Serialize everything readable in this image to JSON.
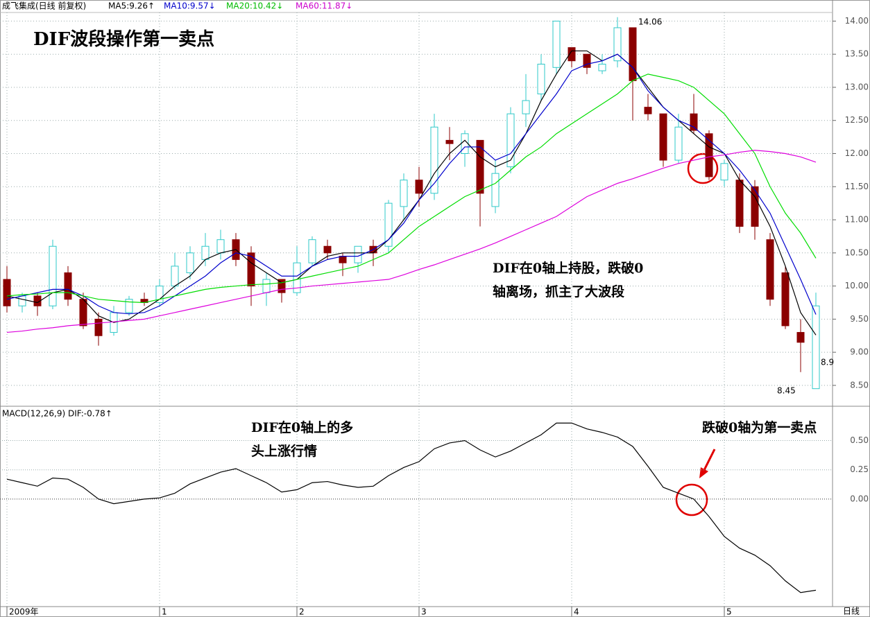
{
  "header": {
    "stock": "成飞集成(日线 前复权)",
    "ma_labels": [
      {
        "text": "MA5:9.26↑",
        "color": "#000000"
      },
      {
        "text": "MA10:9.57↓",
        "color": "#0000cc"
      },
      {
        "text": "MA20:10.42↓",
        "color": "#00bb00"
      },
      {
        "text": "MA60:11.87↓",
        "color": "#cc00cc"
      }
    ],
    "macd": "MACD(12,26,9) DIF:-0.78↑"
  },
  "chart_data": [
    {
      "type": "candlestick",
      "title": "DIF波段操作第一卖点",
      "categories": [
        "2009年",
        null,
        null,
        null,
        null,
        null,
        null,
        null,
        null,
        null,
        "1",
        null,
        null,
        null,
        null,
        null,
        null,
        null,
        null,
        "2",
        null,
        null,
        null,
        null,
        null,
        null,
        null,
        "3",
        null,
        null,
        null,
        null,
        null,
        null,
        null,
        null,
        null,
        "4",
        null,
        null,
        null,
        null,
        null,
        null,
        null,
        null,
        null,
        "5",
        null,
        null,
        null,
        null,
        null,
        null
      ],
      "open": [
        10.1,
        9.7,
        9.85,
        9.7,
        10.2,
        9.8,
        9.5,
        9.3,
        9.6,
        9.8,
        9.75,
        10.0,
        10.2,
        10.4,
        10.5,
        10.7,
        10.5,
        9.9,
        10.1,
        9.9,
        10.35,
        10.6,
        10.45,
        10.35,
        10.6,
        10.6,
        11.2,
        11.6,
        11.4,
        12.2,
        12.0,
        12.2,
        11.2,
        11.8,
        12.6,
        12.9,
        13.3,
        13.6,
        13.5,
        13.25,
        13.4,
        13.9,
        12.7,
        12.6,
        11.9,
        12.6,
        12.3,
        11.6,
        11.6,
        11.5,
        10.7,
        10.2,
        9.3,
        8.45
      ],
      "high": [
        10.3,
        9.9,
        9.9,
        10.7,
        10.3,
        9.9,
        9.6,
        9.7,
        9.85,
        9.9,
        10.1,
        10.5,
        10.6,
        10.8,
        10.85,
        10.8,
        10.6,
        10.2,
        10.1,
        10.6,
        10.75,
        10.7,
        10.5,
        10.6,
        10.7,
        11.3,
        11.7,
        11.8,
        12.6,
        12.4,
        12.35,
        12.2,
        11.9,
        12.7,
        13.2,
        13.5,
        14.0,
        13.6,
        13.5,
        13.5,
        14.06,
        13.9,
        12.9,
        12.6,
        12.6,
        12.9,
        12.35,
        11.9,
        11.7,
        11.6,
        10.8,
        10.3,
        9.5,
        9.9
      ],
      "low": [
        9.6,
        9.6,
        9.55,
        9.65,
        9.7,
        9.35,
        9.1,
        9.25,
        9.55,
        9.7,
        9.7,
        9.95,
        10.1,
        10.3,
        10.4,
        10.3,
        9.7,
        9.7,
        9.75,
        9.85,
        10.3,
        10.4,
        10.15,
        10.2,
        10.3,
        10.5,
        11.0,
        11.2,
        11.3,
        11.9,
        11.8,
        10.9,
        11.1,
        11.7,
        12.4,
        12.8,
        13.2,
        13.3,
        13.2,
        13.2,
        13.3,
        12.5,
        12.5,
        11.8,
        11.85,
        12.3,
        11.6,
        11.5,
        10.8,
        10.7,
        9.7,
        9.35,
        8.7,
        8.45
      ],
      "close": [
        9.7,
        9.85,
        9.7,
        10.6,
        9.8,
        9.4,
        9.25,
        9.6,
        9.8,
        9.75,
        10.0,
        10.3,
        10.5,
        10.6,
        10.7,
        10.4,
        10.0,
        10.1,
        9.9,
        10.35,
        10.7,
        10.5,
        10.35,
        10.6,
        10.5,
        11.25,
        11.6,
        11.4,
        12.4,
        12.15,
        12.3,
        11.4,
        11.7,
        12.6,
        12.8,
        13.35,
        14.0,
        13.4,
        13.3,
        13.35,
        13.9,
        13.1,
        12.6,
        11.9,
        12.4,
        12.35,
        11.65,
        11.85,
        10.9,
        10.9,
        9.8,
        9.4,
        9.15,
        9.7
      ],
      "up_color": "#2ec8c8",
      "down_color": "#8b0000",
      "series": [
        {
          "name": "MA5",
          "color": "#000000",
          "values": [
            9.85,
            9.8,
            9.75,
            9.9,
            9.95,
            9.8,
            9.55,
            9.45,
            9.5,
            9.65,
            9.8,
            10.0,
            10.15,
            10.4,
            10.5,
            10.55,
            10.35,
            10.2,
            10.05,
            10.1,
            10.3,
            10.45,
            10.5,
            10.5,
            10.5,
            10.7,
            11.0,
            11.3,
            11.7,
            12.0,
            12.2,
            11.95,
            11.8,
            11.9,
            12.3,
            12.8,
            13.2,
            13.55,
            13.55,
            13.4,
            13.5,
            13.3,
            13.0,
            12.7,
            12.5,
            12.3,
            12.1,
            12.0,
            11.6,
            11.35,
            10.9,
            10.3,
            9.6,
            9.26
          ]
        },
        {
          "name": "MA10",
          "color": "#0000cc",
          "values": [
            9.8,
            9.85,
            9.9,
            9.95,
            9.95,
            9.85,
            9.7,
            9.6,
            9.58,
            9.6,
            9.7,
            9.85,
            10.0,
            10.15,
            10.35,
            10.5,
            10.45,
            10.3,
            10.15,
            10.15,
            10.3,
            10.4,
            10.45,
            10.45,
            10.55,
            10.7,
            10.95,
            11.3,
            11.55,
            11.85,
            12.1,
            12.1,
            11.9,
            12.0,
            12.3,
            12.6,
            12.9,
            13.25,
            13.35,
            13.4,
            13.5,
            13.3,
            12.95,
            12.7,
            12.5,
            12.4,
            12.2,
            12.0,
            11.75,
            11.45,
            11.1,
            10.6,
            10.1,
            9.57
          ]
        },
        {
          "name": "MA20",
          "color": "#00dd00",
          "values": [
            9.85,
            9.87,
            9.88,
            9.9,
            9.9,
            9.85,
            9.8,
            9.78,
            9.76,
            9.75,
            9.8,
            9.85,
            9.9,
            9.95,
            9.98,
            10.0,
            10.02,
            10.03,
            10.05,
            10.1,
            10.15,
            10.2,
            10.25,
            10.3,
            10.4,
            10.5,
            10.7,
            10.9,
            11.05,
            11.2,
            11.35,
            11.45,
            11.55,
            11.75,
            11.95,
            12.1,
            12.3,
            12.45,
            12.6,
            12.75,
            12.9,
            13.1,
            13.2,
            13.15,
            13.1,
            13.0,
            12.8,
            12.6,
            12.3,
            12.0,
            11.5,
            11.1,
            10.8,
            10.42
          ]
        },
        {
          "name": "MA60",
          "color": "#dd00dd",
          "values": [
            9.3,
            9.32,
            9.35,
            9.37,
            9.4,
            9.42,
            9.44,
            9.46,
            9.48,
            9.5,
            9.55,
            9.6,
            9.65,
            9.7,
            9.75,
            9.8,
            9.85,
            9.9,
            9.95,
            9.97,
            10.0,
            10.02,
            10.04,
            10.06,
            10.08,
            10.1,
            10.17,
            10.25,
            10.32,
            10.4,
            10.48,
            10.56,
            10.65,
            10.75,
            10.85,
            10.95,
            11.05,
            11.2,
            11.35,
            11.45,
            11.55,
            11.62,
            11.7,
            11.78,
            11.85,
            11.9,
            11.95,
            11.98,
            12.02,
            12.05,
            12.03,
            12.0,
            11.95,
            11.87
          ]
        }
      ],
      "ylim": [
        8.3,
        14.13
      ],
      "yticks": [
        {
          "value": 8.5,
          "label": "8.50"
        },
        {
          "value": 9,
          "label": "9.00"
        },
        {
          "value": 9.5,
          "label": "9.50"
        },
        {
          "value": 10,
          "label": "10.00"
        },
        {
          "value": 10.5,
          "label": "10.50"
        },
        {
          "value": 11,
          "label": "11.00"
        },
        {
          "value": 11.5,
          "label": "11.50"
        },
        {
          "value": 12,
          "label": "12.00"
        },
        {
          "value": 12.5,
          "label": "12.50"
        },
        {
          "value": 13,
          "label": "13.00"
        },
        {
          "value": 13.5,
          "label": "13.50"
        },
        {
          "value": 14,
          "label": "14.00"
        }
      ],
      "grid": true,
      "annotations": [
        "DIF在0轴上持股，跌破0",
        "轴离场，抓主了大波段",
        "14.06",
        "8.45",
        "8.9"
      ]
    },
    {
      "type": "line",
      "series": [
        {
          "name": "DIF",
          "color": "#000000",
          "values": [
            0.17,
            0.14,
            0.11,
            0.18,
            0.17,
            0.1,
            0.0,
            -0.04,
            -0.02,
            0,
            0.01,
            0.05,
            0.13,
            0.18,
            0.23,
            0.26,
            0.2,
            0.14,
            0.06,
            0.08,
            0.14,
            0.15,
            0.12,
            0.1,
            0.11,
            0.2,
            0.27,
            0.32,
            0.43,
            0.48,
            0.5,
            0.42,
            0.36,
            0.41,
            0.48,
            0.55,
            0.65,
            0.65,
            0.6,
            0.57,
            0.53,
            0.45,
            0.28,
            0.1,
            0.05,
            0,
            -0.15,
            -0.32,
            -0.42,
            -0.48,
            -0.57,
            -0.7,
            -0.8,
            -0.78
          ]
        }
      ],
      "ylim": [
        -0.92,
        0.77
      ],
      "yticks": [
        {
          "value": 0,
          "label": "0.00"
        },
        {
          "value": 0.25,
          "label": "0.25"
        },
        {
          "value": 0.5,
          "label": "0.50"
        }
      ],
      "annotations": [
        "DIF在0轴上的多",
        "头上涨行情",
        "跌破0轴为第一卖点"
      ],
      "x_label": "日线"
    }
  ]
}
